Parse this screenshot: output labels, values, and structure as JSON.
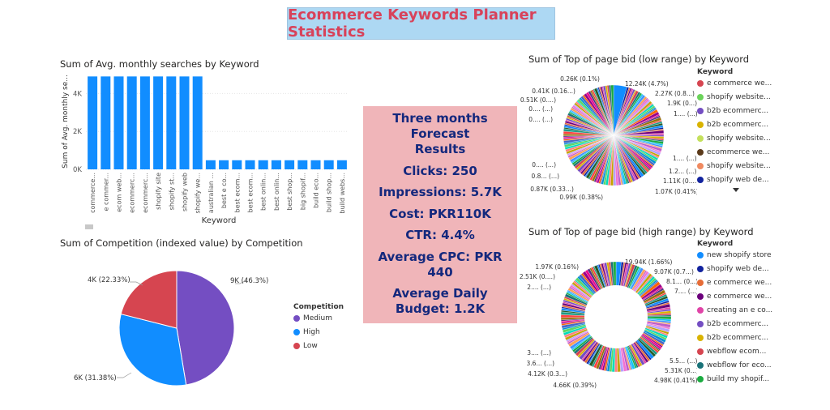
{
  "page_title": "Ecommerce Keywords Planner Statistics",
  "kpi": {
    "heading": "Three months Forecast Results",
    "clicks": "Clicks: 250",
    "impressions": "Impressions: 5.7K",
    "cost": "Cost: PKR110K",
    "ctr": "CTR: 4.4%",
    "avg_cpc": "Average CPC: PKR 440",
    "avg_daily_budget": "Average Daily Budget: 1.2K"
  },
  "chart_data": [
    {
      "type": "bar",
      "title": "Sum of Avg. monthly searches by Keyword",
      "xlabel": "Keyword",
      "ylabel": "Sum of Avg. monthly se...",
      "ylim": [
        0,
        5000
      ],
      "yticks": [
        0,
        2000,
        4000
      ],
      "ytick_labels": [
        "0K",
        "2K",
        "4K"
      ],
      "grid": true,
      "color": "#118dff",
      "categories": [
        "commerce...",
        "e commer...",
        "ecom web...",
        "ecommerc...",
        "ecommerc...",
        "shopify site",
        "shopify st...",
        "shopify web",
        "shopify we...",
        "australian ...",
        "best e co...",
        "best ecom...",
        "best ecom...",
        "best onlin...",
        "best onlin...",
        "best shop...",
        "big shopif...",
        "build eco...",
        "build shop...",
        "build webs..."
      ],
      "values": [
        4900,
        4900,
        4900,
        4900,
        4900,
        4900,
        4900,
        4900,
        4900,
        480,
        480,
        480,
        480,
        480,
        480,
        480,
        480,
        480,
        480,
        480
      ]
    },
    {
      "type": "pie",
      "title": "Sum of Competition (indexed value) by Competition",
      "legend_title": "Competition",
      "legend_position": "right",
      "slices": [
        {
          "name": "Medium",
          "value": 9000,
          "label": "9K (46.3%)",
          "color": "#744ec2"
        },
        {
          "name": "High",
          "value": 6000,
          "label": "6K (31.38%)",
          "color": "#118dff"
        },
        {
          "name": "Low",
          "value": 4000,
          "label": "4K (22.33%)",
          "color": "#d64550"
        }
      ]
    },
    {
      "type": "pie",
      "title": "Sum of Top of page bid (low range) by Keyword",
      "legend_title": "Keyword",
      "legend_position": "right",
      "legend": [
        {
          "name": "e commerce we...",
          "color": "#d64550"
        },
        {
          "name": "shopify website...",
          "color": "#6bd35a"
        },
        {
          "name": "b2b ecommerc...",
          "color": "#744ec2"
        },
        {
          "name": "b2b ecommerc...",
          "color": "#d9b300"
        },
        {
          "name": "shopify website...",
          "color": "#c4e05c"
        },
        {
          "name": "ecommerce we...",
          "color": "#5b3a1a"
        },
        {
          "name": "shopify website...",
          "color": "#f08a60"
        },
        {
          "name": "shopify web de...",
          "color": "#12239e"
        }
      ],
      "labels": [
        "12.24K (4.7%)",
        "2.27K (0.8...)",
        "1.9K (0...)",
        "1.... (...)",
        "1.... (...)",
        "1.2... (...)",
        "1.11K (0....)",
        "1.07K (0.41%)",
        "0.99K (0.38%)",
        "0.87K (0.33...)",
        "0.8... (...)",
        "0.... (...)",
        "0.... (...)",
        "0.... (...)",
        "0.51K (0....)",
        "0.41K (0.16...)",
        "0.26K (0.1%)"
      ]
    },
    {
      "type": "pie",
      "title": "Sum of Top of page bid (high range) by Keyword",
      "legend_title": "Keyword",
      "legend_position": "right",
      "legend": [
        {
          "name": "new shopify store",
          "color": "#118dff"
        },
        {
          "name": "shopify web de...",
          "color": "#12239e"
        },
        {
          "name": "e commerce we...",
          "color": "#e66c37"
        },
        {
          "name": "e commerce we...",
          "color": "#6b007b"
        },
        {
          "name": "creating an e co...",
          "color": "#e044a7"
        },
        {
          "name": "b2b ecommerc...",
          "color": "#744ec2"
        },
        {
          "name": "b2b ecommerc...",
          "color": "#d9b300"
        },
        {
          "name": "webflow ecom...",
          "color": "#d64550"
        },
        {
          "name": "webflow for eco...",
          "color": "#197278"
        },
        {
          "name": "build my shopif...",
          "color": "#1aab40"
        }
      ],
      "labels": [
        "19.94K (1.66%)",
        "9.07K (0.7...)",
        "8.1... (0...)",
        "7.... (...)",
        "5.5... (...)",
        "5.31K (0...)",
        "4.98K (0.41%)",
        "4.66K (0.39%)",
        "4.12K (0.3...)",
        "3.6... (...)",
        "3.... (...)",
        "2.... (...)",
        "2.51K (0....)",
        "1.97K (0.16%)"
      ]
    }
  ]
}
